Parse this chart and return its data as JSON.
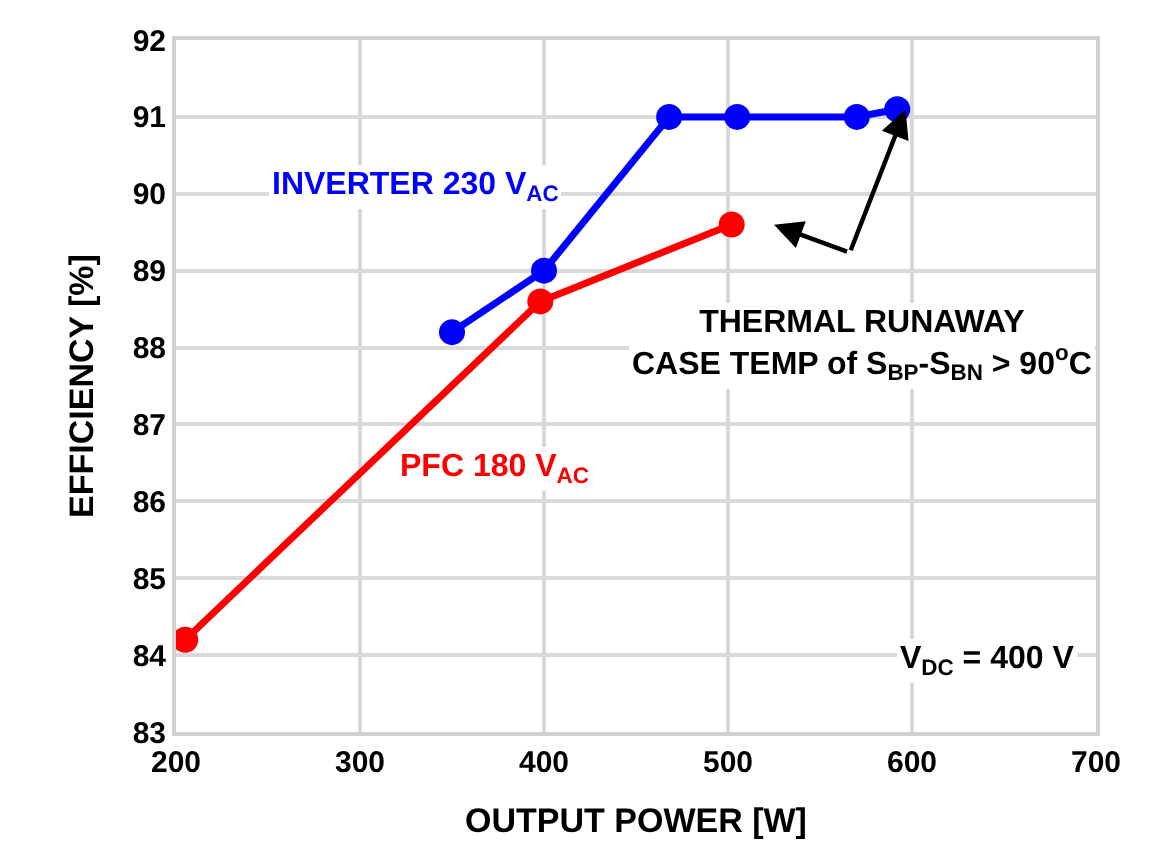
{
  "chart_data": {
    "type": "line",
    "xlabel": "OUTPUT POWER [W]",
    "ylabel": "EFFICIENCY [%]",
    "series": [
      {
        "name": "INVERTER 230 V$_{AC}$",
        "color": "#0000ff",
        "x": [
          350,
          400,
          468,
          505,
          570,
          592
        ],
        "values": [
          88.2,
          89.0,
          91.0,
          91.0,
          91.0,
          91.1
        ]
      },
      {
        "name": "PFC 180 V$_{AC}$",
        "color": "#ff0000",
        "x": [
          205,
          398,
          502
        ],
        "values": [
          84.2,
          88.6,
          89.6
        ]
      }
    ],
    "xlim": [
      200,
      700
    ],
    "xticks": [
      200,
      300,
      400,
      500,
      600,
      700
    ],
    "ylim": [
      83,
      92
    ],
    "yticks": [
      83,
      84,
      85,
      86,
      87,
      88,
      89,
      90,
      91,
      92
    ],
    "grid": true,
    "legend": false,
    "marker": "circle",
    "line_style": "solid",
    "annotations": [
      "THERMAL RUNAWAY\nCASE TEMP of S$_{BP}$-S$_{BN}$ > 90$^{o}$C",
      "V$_{DC}$ = 400 V"
    ]
  }
}
